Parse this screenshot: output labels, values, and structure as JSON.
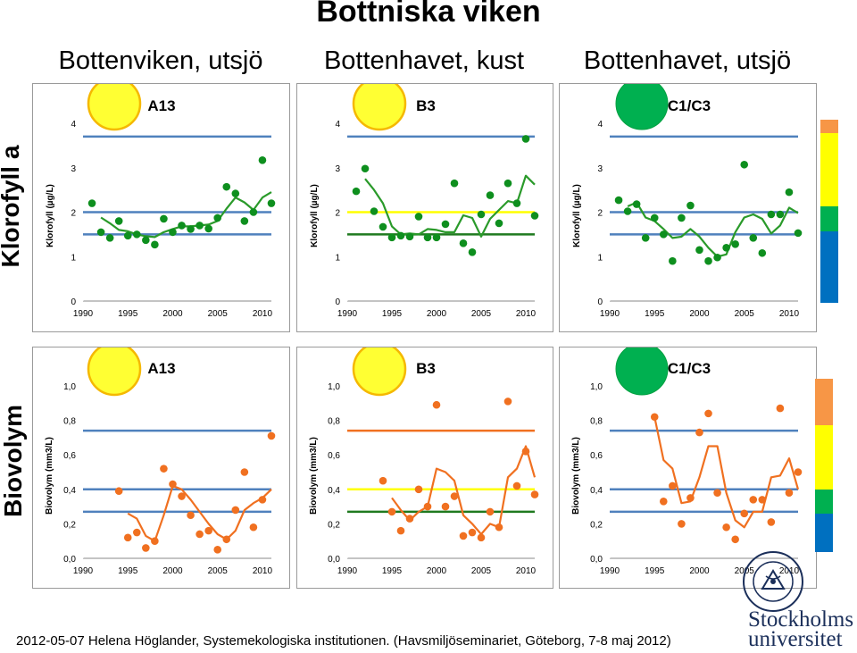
{
  "title": "Bottniska viken",
  "columns": [
    "Bottenviken, utsjö",
    "Bottenhavet, kust",
    "Bottenhavet, utsjö"
  ],
  "rows": [
    "Klorofyll a",
    "Biovolym"
  ],
  "footer": "2012-05-07 Helena Höglander, Systemekologiska institutionen. (Havsmiljöseminariet, Göteborg, 7-8 maj 2012)",
  "logo": {
    "line1": "Stockholms",
    "line2": "universitet",
    "seal_text": "STOCKHOLMS UNIVERSITET"
  },
  "colors": {
    "blue": "#4f81bd",
    "yellow": "#ffff00",
    "dark_green": "#1f7a1f",
    "point_green": "#0e8f1e",
    "orange": "#f07020",
    "circle_yellow": "#ffff33",
    "circle_border": "#f5b800",
    "circle_green": "#00b050",
    "scale_orange": "#f79646",
    "scale_blue": "#0070c0"
  },
  "scales": {
    "klorofyll": [
      "#f79646",
      "#ffff00",
      "#00b050",
      "#0070c0"
    ],
    "biovolym": [
      "#f79646",
      "#ffff00",
      "#00b050",
      "#0070c0"
    ]
  },
  "chart_data": [
    {
      "type": "line",
      "row": "Klorofyll a",
      "station": "A13",
      "status_color": "yellow",
      "ylabel": "Klorofyll (µg/L)",
      "xlim": [
        1990,
        2011
      ],
      "ylim": [
        0,
        4
      ],
      "yticks": [
        "0",
        "1",
        "2",
        "3",
        "4"
      ],
      "xticks": [
        "1990",
        "1995",
        "2000",
        "2005",
        "2010"
      ],
      "hlines": [
        {
          "y": 3.7,
          "color": "blue"
        },
        {
          "y": 2.0,
          "color": "blue"
        },
        {
          "y": 1.5,
          "color": "blue"
        }
      ],
      "points": {
        "x": [
          1991,
          1992,
          1993,
          1994,
          1995,
          1996,
          1997,
          1998,
          1999,
          2000,
          2001,
          2002,
          2003,
          2004,
          2005,
          2006,
          2007,
          2008,
          2009,
          2010,
          2011
        ],
        "y": [
          2.2,
          1.55,
          1.42,
          1.8,
          1.47,
          1.5,
          1.37,
          1.27,
          1.85,
          1.55,
          1.7,
          1.62,
          1.7,
          1.63,
          1.87,
          2.57,
          2.42,
          1.8,
          2.0,
          3.17,
          2.2
        ]
      },
      "trend": {
        "x": [
          1992,
          1993,
          1994,
          1995,
          1996,
          1997,
          1998,
          1999,
          2000,
          2001,
          2002,
          2003,
          2004,
          2005,
          2006,
          2007,
          2008,
          2009,
          2010,
          2011
        ],
        "y": [
          1.88,
          1.75,
          1.6,
          1.57,
          1.5,
          1.46,
          1.44,
          1.55,
          1.62,
          1.68,
          1.68,
          1.7,
          1.72,
          1.8,
          2.08,
          2.33,
          2.22,
          2.05,
          2.33,
          2.45
        ]
      }
    },
    {
      "type": "line",
      "row": "Klorofyll a",
      "station": "B3",
      "status_color": "yellow",
      "ylabel": "Klorofyll (µg/L)",
      "xlim": [
        1990,
        2011
      ],
      "ylim": [
        0,
        4
      ],
      "yticks": [
        "0",
        "1",
        "2",
        "3",
        "4"
      ],
      "xticks": [
        "1990",
        "1995",
        "2000",
        "2005",
        "2010"
      ],
      "hlines": [
        {
          "y": 3.7,
          "color": "blue"
        },
        {
          "y": 2.0,
          "color": "yellow"
        },
        {
          "y": 1.5,
          "color": "dark_green"
        }
      ],
      "points": {
        "x": [
          1991,
          1992,
          1993,
          1994,
          1995,
          1996,
          1997,
          1998,
          1999,
          2000,
          2001,
          2002,
          2003,
          2004,
          2005,
          2006,
          2007,
          2008,
          2009,
          2010,
          2011
        ],
        "y": [
          2.47,
          2.98,
          2.02,
          1.67,
          1.43,
          1.47,
          1.45,
          1.9,
          1.43,
          1.43,
          1.73,
          2.65,
          1.3,
          1.1,
          1.95,
          2.38,
          1.75,
          2.65,
          2.2,
          3.65,
          1.92
        ]
      },
      "trend": {
        "x": [
          1992,
          1993,
          1994,
          1995,
          1996,
          1997,
          1998,
          1999,
          2000,
          2001,
          2002,
          2003,
          2004,
          2005,
          2006,
          2007,
          2008,
          2009,
          2010,
          2011
        ],
        "y": [
          2.75,
          2.5,
          2.2,
          1.68,
          1.5,
          1.52,
          1.5,
          1.62,
          1.6,
          1.55,
          1.55,
          1.93,
          1.87,
          1.45,
          1.85,
          2.05,
          2.25,
          2.2,
          2.82,
          2.62
        ]
      }
    },
    {
      "type": "line",
      "row": "Klorofyll a",
      "station": "C1/C3",
      "status_color": "green",
      "ylabel": "Klorofyll (µg/L)",
      "xlim": [
        1990,
        2011
      ],
      "ylim": [
        0,
        4
      ],
      "yticks": [
        "0",
        "1",
        "2",
        "3",
        "4"
      ],
      "xticks": [
        "1990",
        "1995",
        "2000",
        "2005",
        "2010"
      ],
      "hlines": [
        {
          "y": 3.7,
          "color": "blue"
        },
        {
          "y": 2.0,
          "color": "blue"
        },
        {
          "y": 1.5,
          "color": "blue"
        }
      ],
      "points": {
        "x": [
          1991,
          1992,
          1993,
          1994,
          1995,
          1996,
          1997,
          1998,
          1999,
          2000,
          2001,
          2002,
          2003,
          2004,
          2005,
          2006,
          2007,
          2008,
          2009,
          2010,
          2011
        ],
        "y": [
          2.27,
          2.02,
          2.18,
          1.42,
          1.87,
          1.5,
          0.9,
          1.87,
          2.15,
          1.15,
          0.9,
          0.98,
          1.2,
          1.28,
          3.07,
          1.42,
          1.08,
          1.95,
          1.95,
          2.45,
          1.53
        ]
      },
      "trend": {
        "x": [
          1992,
          1993,
          1994,
          1995,
          1996,
          1997,
          1998,
          1999,
          2000,
          2001,
          2002,
          2003,
          2004,
          2005,
          2006,
          2007,
          2008,
          2009,
          2010,
          2011
        ],
        "y": [
          2.13,
          2.22,
          1.88,
          1.8,
          1.62,
          1.42,
          1.45,
          1.62,
          1.45,
          1.2,
          1.0,
          1.05,
          1.55,
          1.88,
          1.95,
          1.85,
          1.52,
          1.7,
          2.1,
          1.98
        ]
      }
    },
    {
      "type": "line",
      "row": "Biovolym",
      "station": "A13",
      "status_color": "yellow",
      "ylabel": "Biovolym (mm3/L)",
      "xlim": [
        1990,
        2011
      ],
      "ylim": [
        0,
        1.0
      ],
      "yticks": [
        "0,0",
        "0,2",
        "0,4",
        "0,6",
        "0,8",
        "1,0"
      ],
      "xticks": [
        "1990",
        "1995",
        "2000",
        "2005",
        "2010"
      ],
      "hlines": [
        {
          "y": 0.74,
          "color": "blue"
        },
        {
          "y": 0.4,
          "color": "blue"
        },
        {
          "y": 0.27,
          "color": "blue"
        }
      ],
      "points": {
        "x": [
          1994,
          1995,
          1996,
          1997,
          1998,
          1999,
          2000,
          2001,
          2002,
          2003,
          2004,
          2005,
          2006,
          2007,
          2008,
          2009,
          2010,
          2011
        ],
        "y": [
          0.39,
          0.12,
          0.15,
          0.06,
          0.1,
          0.52,
          0.43,
          0.36,
          0.25,
          0.14,
          0.16,
          0.05,
          0.11,
          0.28,
          0.5,
          0.18,
          0.34,
          0.71
        ]
      },
      "trend": {
        "x": [
          1995,
          1996,
          1997,
          1998,
          1999,
          2000,
          2001,
          2002,
          2003,
          2004,
          2005,
          2006,
          2007,
          2008,
          2009,
          2010,
          2011
        ],
        "y": [
          0.26,
          0.23,
          0.13,
          0.1,
          0.25,
          0.42,
          0.4,
          0.34,
          0.27,
          0.2,
          0.14,
          0.11,
          0.16,
          0.28,
          0.32,
          0.35,
          0.4
        ]
      }
    },
    {
      "type": "line",
      "row": "Biovolym",
      "station": "B3",
      "status_color": "yellow",
      "ylabel": "Biovolym (mm3/L)",
      "xlim": [
        1990,
        2011
      ],
      "ylim": [
        0,
        1.0
      ],
      "yticks": [
        "0,0",
        "0,2",
        "0,4",
        "0,6",
        "0,8",
        "1,0"
      ],
      "xticks": [
        "1990",
        "1995",
        "2000",
        "2005",
        "2010"
      ],
      "hlines": [
        {
          "y": 0.74,
          "color": "orange"
        },
        {
          "y": 0.4,
          "color": "yellow"
        },
        {
          "y": 0.27,
          "color": "dark_green"
        }
      ],
      "points": {
        "x": [
          1994,
          1995,
          1996,
          1997,
          1998,
          1999,
          2000,
          2001,
          2002,
          2003,
          2004,
          2005,
          2006,
          2007,
          2008,
          2009,
          2010,
          2011
        ],
        "y": [
          0.45,
          0.27,
          0.16,
          0.23,
          0.4,
          0.3,
          0.89,
          0.3,
          0.36,
          0.13,
          0.15,
          0.12,
          0.27,
          0.18,
          0.91,
          0.42,
          0.62,
          0.37
        ]
      },
      "trend": {
        "x": [
          1995,
          1996,
          1997,
          1998,
          1999,
          2000,
          2001,
          2002,
          2003,
          2004,
          2005,
          2006,
          2007,
          2008,
          2009,
          2010,
          2011
        ],
        "y": [
          0.35,
          0.28,
          0.22,
          0.27,
          0.3,
          0.52,
          0.5,
          0.45,
          0.25,
          0.2,
          0.14,
          0.2,
          0.18,
          0.47,
          0.52,
          0.65,
          0.47
        ]
      }
    },
    {
      "type": "line",
      "row": "Biovolym",
      "station": "C1/C3",
      "status_color": "green",
      "ylabel": "Biovolym (mm3/L)",
      "xlim": [
        1990,
        2011
      ],
      "ylim": [
        0,
        1.0
      ],
      "yticks": [
        "0,0",
        "0,2",
        "0,4",
        "0,6",
        "0,8",
        "1,0"
      ],
      "xticks": [
        "1990",
        "1995",
        "2000",
        "2005",
        "2010"
      ],
      "hlines": [
        {
          "y": 0.74,
          "color": "blue"
        },
        {
          "y": 0.4,
          "color": "blue"
        },
        {
          "y": 0.27,
          "color": "blue"
        }
      ],
      "points": {
        "x": [
          1995,
          1996,
          1997,
          1998,
          1999,
          2000,
          2001,
          2002,
          2003,
          2004,
          2005,
          2006,
          2007,
          2008,
          2009,
          2010,
          2011
        ],
        "y": [
          0.82,
          0.33,
          0.42,
          0.2,
          0.35,
          0.73,
          0.84,
          0.38,
          0.18,
          0.11,
          0.26,
          0.34,
          0.34,
          0.21,
          0.87,
          0.38,
          0.5
        ]
      },
      "trend": {
        "x": [
          1995,
          1996,
          1997,
          1998,
          1999,
          2000,
          2001,
          2002,
          2003,
          2004,
          2005,
          2006,
          2007,
          2008,
          2009,
          2010,
          2011
        ],
        "y": [
          0.82,
          0.57,
          0.52,
          0.32,
          0.33,
          0.47,
          0.65,
          0.65,
          0.38,
          0.22,
          0.18,
          0.27,
          0.27,
          0.47,
          0.48,
          0.58,
          0.4
        ]
      }
    }
  ]
}
